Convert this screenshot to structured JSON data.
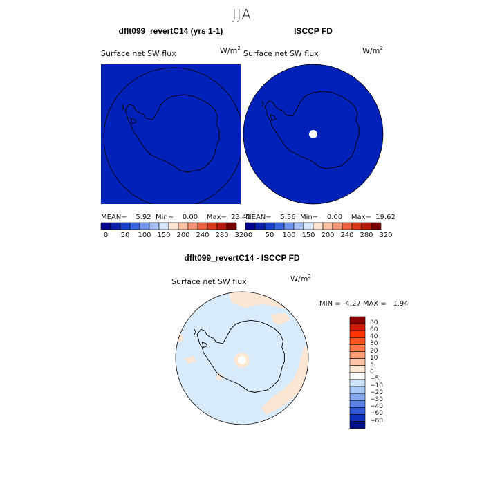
{
  "season": "JJA",
  "panels": {
    "model": {
      "title": "dflt099_revertC14 (yrs 1-1)",
      "variable": "Surface net SW flux",
      "units": "W/m",
      "units_exp": "2",
      "stats": {
        "mean_label": "MEAN=",
        "mean": "5.92",
        "min_label": "Min=",
        "min": "0.00",
        "max_label": "Max=",
        "max": "23.41"
      }
    },
    "obs": {
      "title": "ISCCP FD",
      "variable": "Surface net SW flux",
      "units": "W/m",
      "units_exp": "2",
      "stats": {
        "mean_label": "MEAN=",
        "mean": "5.56",
        "min_label": "Min=",
        "min": "0.00",
        "max_label": "Max=",
        "max": "19.62"
      }
    },
    "diff": {
      "title": "dflt099_revertC14 - ISCCP FD",
      "variable": "Surface net SW flux",
      "units": "W/m",
      "units_exp": "2",
      "stats": {
        "min_label": "MIN =",
        "min": "-4.27",
        "max_label": "MAX =",
        "max": "1.94"
      }
    }
  },
  "colorbar_top": {
    "tick_labels": [
      "0",
      "50",
      "100",
      "150",
      "200",
      "240",
      "280",
      "320"
    ],
    "colors": [
      "#00008c",
      "#0a1faa",
      "#1840c8",
      "#3a66e0",
      "#6f95ee",
      "#a3bff6",
      "#d6e6fb",
      "#fde5d2",
      "#fbc1a2",
      "#f49475",
      "#e8623f",
      "#d83a1c",
      "#b31e0e",
      "#7a0000"
    ]
  },
  "colorbar_diff": {
    "labels": [
      "80",
      "60",
      "40",
      "30",
      "20",
      "10",
      "5",
      "0",
      "-5",
      "-10",
      "-20",
      "-30",
      "-40",
      "-60",
      "-80"
    ],
    "colors": [
      "#8b0000",
      "#cc1a00",
      "#ff3300",
      "#ff5522",
      "#ff7a4d",
      "#ffa07a",
      "#ffc4a8",
      "#fde6d2",
      "#ffffff",
      "#cfe4fb",
      "#a9c8f5",
      "#86a9ee",
      "#5a82e2",
      "#3158d6",
      "#0f31bf",
      "#000e8a"
    ]
  },
  "colors": {
    "map_fill": "#0022b8",
    "diff_fill": "#d8ebfb",
    "diff_positive": "#fbe5d3",
    "coast": "#000000"
  }
}
